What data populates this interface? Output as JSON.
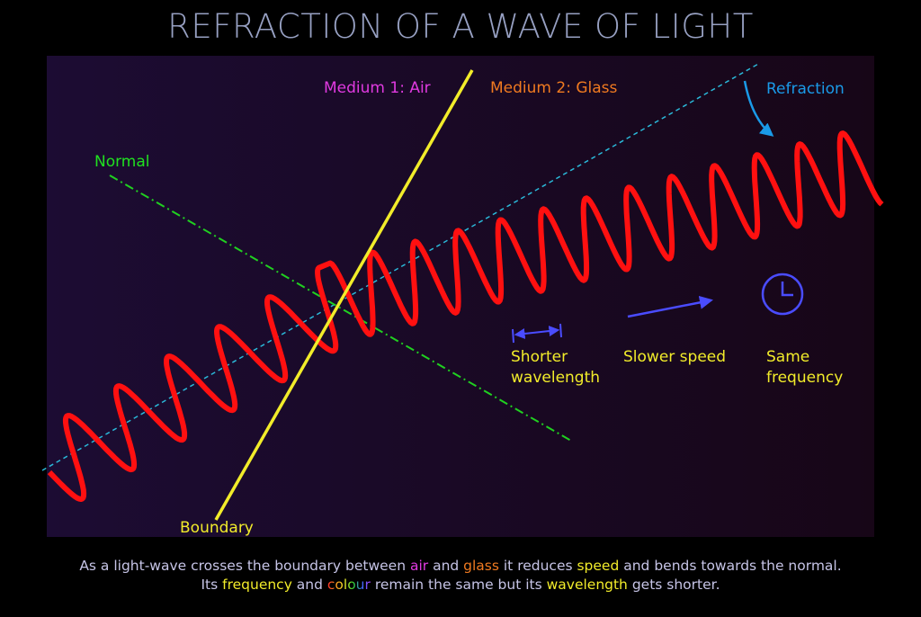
{
  "title": "REFRACTION OF A WAVE OF LIGHT",
  "labels": {
    "medium_1": "Medium 1: Air",
    "medium_2": "Medium 2: Glass",
    "refraction": "Refraction",
    "normal": "Normal",
    "boundary": "Boundary",
    "shorter_wavelength": [
      "Shorter",
      "wavelength"
    ],
    "slower_speed": "Slower speed",
    "same_frequency": [
      "Same",
      "frequency"
    ]
  },
  "caption": [
    [
      "As a light-wave crosses the boundary between ",
      "air",
      " and ",
      "glass",
      " it reduces ",
      "speed",
      " and bends towards the normal."
    ],
    [
      "Its ",
      "frequency",
      " and ",
      "colour",
      " remain the same but its ",
      "wavelength",
      " gets shorter."
    ]
  ]
}
